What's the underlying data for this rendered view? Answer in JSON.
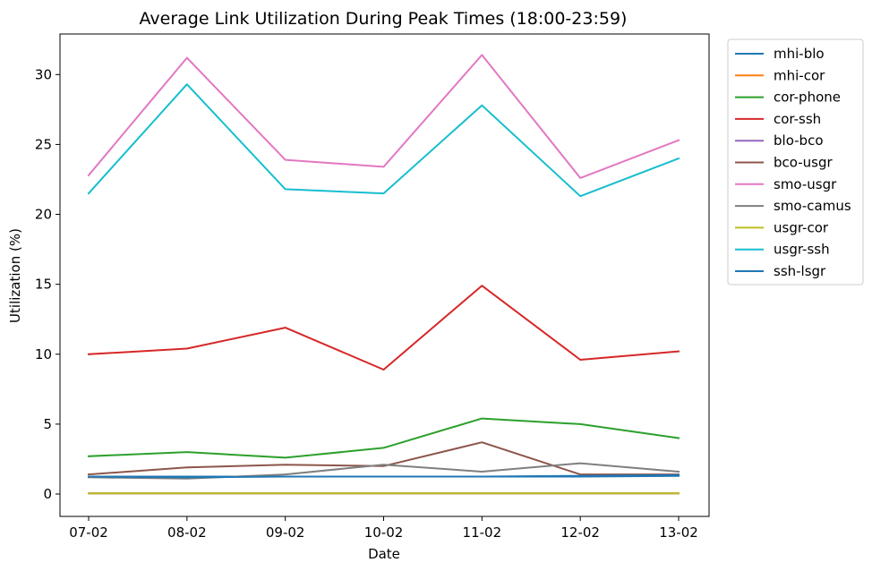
{
  "chart_data": {
    "type": "line",
    "title": "Average Link Utilization During Peak Times (18:00-23:59)",
    "xlabel": "Date",
    "ylabel": "Utilization (%)",
    "categories": [
      "07-02",
      "08-02",
      "09-02",
      "10-02",
      "11-02",
      "12-02",
      "13-02"
    ],
    "ylim": [
      -1.6,
      32.9
    ],
    "yticks": [
      0,
      5,
      10,
      15,
      20,
      25,
      30
    ],
    "grid": false,
    "legend_position": "outside-right-top",
    "series": [
      {
        "name": "mhi-blo",
        "color": "#1f77b4",
        "values": [
          1.25,
          1.25,
          1.25,
          1.25,
          1.25,
          1.25,
          1.3
        ]
      },
      {
        "name": "mhi-cor",
        "color": "#ff7f0e",
        "values": [
          0.05,
          0.05,
          0.05,
          0.05,
          0.05,
          0.05,
          0.05
        ]
      },
      {
        "name": "cor-phone",
        "color": "#2ca02c",
        "values": [
          2.7,
          3.0,
          2.6,
          3.3,
          5.4,
          5.0,
          4.0
        ]
      },
      {
        "name": "cor-ssh",
        "color": "#d62728",
        "values": [
          10.0,
          10.4,
          11.9,
          8.9,
          14.9,
          9.6,
          10.2
        ]
      },
      {
        "name": "blo-bco",
        "color": "#9467bd",
        "values": [
          0.05,
          0.05,
          0.05,
          0.05,
          0.05,
          0.05,
          0.05
        ]
      },
      {
        "name": "bco-usgr",
        "color": "#8c564b",
        "values": [
          1.4,
          1.9,
          2.1,
          2.0,
          3.7,
          1.4,
          1.4
        ]
      },
      {
        "name": "smo-usgr",
        "color": "#e377c2",
        "values": [
          22.8,
          31.2,
          23.9,
          23.4,
          31.4,
          22.6,
          25.3
        ]
      },
      {
        "name": "smo-camus",
        "color": "#7f7f7f",
        "values": [
          1.2,
          1.1,
          1.4,
          2.1,
          1.6,
          2.2,
          1.6
        ]
      },
      {
        "name": "usgr-cor",
        "color": "#bcbd22",
        "values": [
          0.05,
          0.05,
          0.05,
          0.05,
          0.05,
          0.05,
          0.05
        ]
      },
      {
        "name": "usgr-ssh",
        "color": "#17becf",
        "values": [
          21.5,
          29.3,
          21.8,
          21.5,
          27.8,
          21.3,
          24.0
        ]
      },
      {
        "name": "ssh-lsgr",
        "color": "#1f77b4",
        "values": [
          1.25,
          1.2,
          1.25,
          1.25,
          1.25,
          1.3,
          1.35
        ]
      }
    ]
  }
}
